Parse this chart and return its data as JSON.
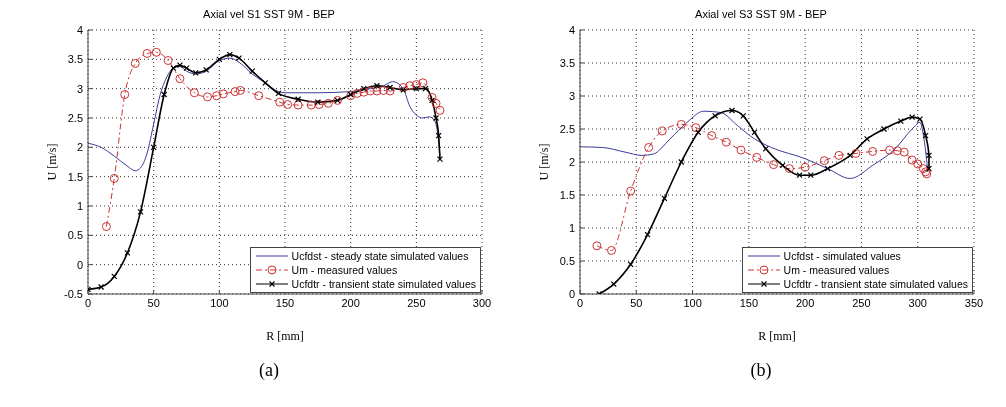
{
  "chart_data": [
    {
      "type": "line",
      "title": "Axial vel S1 SST 9M - BEP",
      "xlabel": "R [mm]",
      "ylabel": "U [m/s]",
      "xlim": [
        0,
        300
      ],
      "xticks": [
        0,
        50,
        100,
        150,
        200,
        250,
        300
      ],
      "ylim": [
        -0.5,
        4
      ],
      "yticks": [
        -0.5,
        0,
        0.5,
        1,
        1.5,
        2,
        2.5,
        3,
        3.5,
        4
      ],
      "grid": true,
      "legend": "bottom right",
      "annotations": [
        "(a)"
      ],
      "series": [
        {
          "name": "Ucfdst -  steady state simulated values",
          "color": "#3c3c9c",
          "marker": "none",
          "line_style": "solid",
          "x": [
            0,
            10,
            20,
            30,
            36,
            40,
            45,
            50,
            55,
            60,
            65,
            70,
            75,
            82,
            90,
            100,
            108,
            115,
            125,
            135,
            145,
            150,
            175,
            200,
            215,
            225,
            232,
            240,
            245,
            250,
            255,
            260,
            264,
            267,
            268
          ],
          "values": [
            2.07,
            2.0,
            1.85,
            1.68,
            1.6,
            1.65,
            1.9,
            2.4,
            2.9,
            3.2,
            3.35,
            3.38,
            3.3,
            3.25,
            3.3,
            3.48,
            3.52,
            3.45,
            3.25,
            3.1,
            2.95,
            2.93,
            2.93,
            2.95,
            3.0,
            3.05,
            3.12,
            3.0,
            2.7,
            2.55,
            2.5,
            2.52,
            2.45,
            2.1,
            1.85
          ]
        },
        {
          "name": "Um - measured values",
          "color": "#cc3333",
          "marker": "circle",
          "line_style": "dashed",
          "x": [
            14,
            20,
            28,
            36,
            45,
            52,
            61,
            70,
            81,
            91,
            98,
            103,
            112,
            116,
            130,
            146,
            152,
            160,
            170,
            176,
            183,
            190,
            200,
            205,
            210,
            215,
            220,
            225,
            230,
            240,
            245,
            250,
            255,
            262,
            265,
            268
          ],
          "values": [
            0.65,
            1.47,
            2.9,
            3.43,
            3.6,
            3.62,
            3.48,
            3.17,
            2.93,
            2.86,
            2.88,
            2.91,
            2.95,
            2.97,
            2.88,
            2.77,
            2.73,
            2.72,
            2.72,
            2.73,
            2.75,
            2.8,
            2.88,
            2.92,
            2.94,
            2.96,
            2.96,
            2.97,
            2.96,
            3.02,
            3.05,
            3.07,
            3.1,
            2.85,
            2.75,
            2.63
          ]
        },
        {
          "name": "Ucfdtr -  transient state simulated values",
          "color": "#000000",
          "marker": "cross",
          "line_style": "solid",
          "x": [
            0,
            10,
            20,
            30,
            40,
            50,
            58,
            65,
            70,
            75,
            82,
            90,
            100,
            108,
            115,
            125,
            135,
            145,
            160,
            175,
            190,
            200,
            210,
            220,
            230,
            240,
            250,
            257,
            262,
            265,
            267,
            268
          ],
          "values": [
            -0.42,
            -0.38,
            -0.2,
            0.2,
            0.9,
            2.0,
            2.9,
            3.35,
            3.4,
            3.35,
            3.27,
            3.32,
            3.5,
            3.58,
            3.52,
            3.3,
            3.1,
            2.92,
            2.82,
            2.77,
            2.8,
            2.9,
            3.0,
            3.05,
            3.02,
            2.98,
            3.0,
            3.0,
            2.8,
            2.5,
            2.2,
            1.8
          ]
        }
      ]
    },
    {
      "type": "line",
      "title": "Axial vel S3 SST 9M - BEP",
      "xlabel": "R [mm]",
      "ylabel": "U [m/s]",
      "xlim": [
        0,
        350
      ],
      "xticks": [
        0,
        50,
        100,
        150,
        200,
        250,
        300,
        350
      ],
      "ylim": [
        0,
        4
      ],
      "yticks": [
        0,
        0.5,
        1,
        1.5,
        2,
        2.5,
        3,
        3.5,
        4
      ],
      "grid": true,
      "legend": "bottom right",
      "annotations": [
        "(b)"
      ],
      "series": [
        {
          "name": "Ucfdst - simulated values",
          "color": "#3c3c9c",
          "marker": "none",
          "line_style": "solid",
          "x": [
            0,
            20,
            40,
            55,
            65,
            80,
            95,
            110,
            125,
            140,
            155,
            170,
            200,
            220,
            240,
            260,
            280,
            295,
            302,
            306,
            309
          ],
          "values": [
            2.23,
            2.22,
            2.15,
            2.1,
            2.12,
            2.35,
            2.6,
            2.77,
            2.75,
            2.55,
            2.35,
            2.22,
            2.05,
            1.9,
            1.75,
            1.95,
            2.2,
            2.5,
            2.6,
            2.3,
            1.85
          ]
        },
        {
          "name": "Um - measured values",
          "color": "#cc3333",
          "marker": "circle",
          "line_style": "dashed",
          "x": [
            15,
            28,
            45,
            61,
            73,
            90,
            103,
            117,
            130,
            143,
            157,
            172,
            186,
            200,
            217,
            230,
            245,
            260,
            275,
            282,
            288,
            295,
            300,
            305,
            307,
            308
          ],
          "values": [
            0.73,
            0.66,
            1.56,
            2.22,
            2.47,
            2.57,
            2.52,
            2.4,
            2.3,
            2.18,
            2.07,
            1.96,
            1.9,
            1.92,
            2.02,
            2.1,
            2.13,
            2.16,
            2.18,
            2.17,
            2.15,
            2.03,
            1.97,
            1.9,
            1.85,
            1.82
          ]
        },
        {
          "name": "Ucfdtr -  transient state simulated values",
          "color": "#000000",
          "marker": "cross",
          "line_style": "solid",
          "x": [
            17,
            30,
            45,
            60,
            75,
            90,
            105,
            120,
            135,
            145,
            155,
            165,
            180,
            195,
            205,
            220,
            240,
            255,
            270,
            285,
            295,
            302,
            307,
            310,
            310
          ],
          "values": [
            0,
            0.15,
            0.45,
            0.9,
            1.45,
            2.0,
            2.45,
            2.7,
            2.78,
            2.7,
            2.45,
            2.2,
            1.95,
            1.8,
            1.8,
            1.9,
            2.1,
            2.35,
            2.5,
            2.62,
            2.68,
            2.65,
            2.4,
            2.1,
            1.9
          ]
        }
      ]
    }
  ]
}
